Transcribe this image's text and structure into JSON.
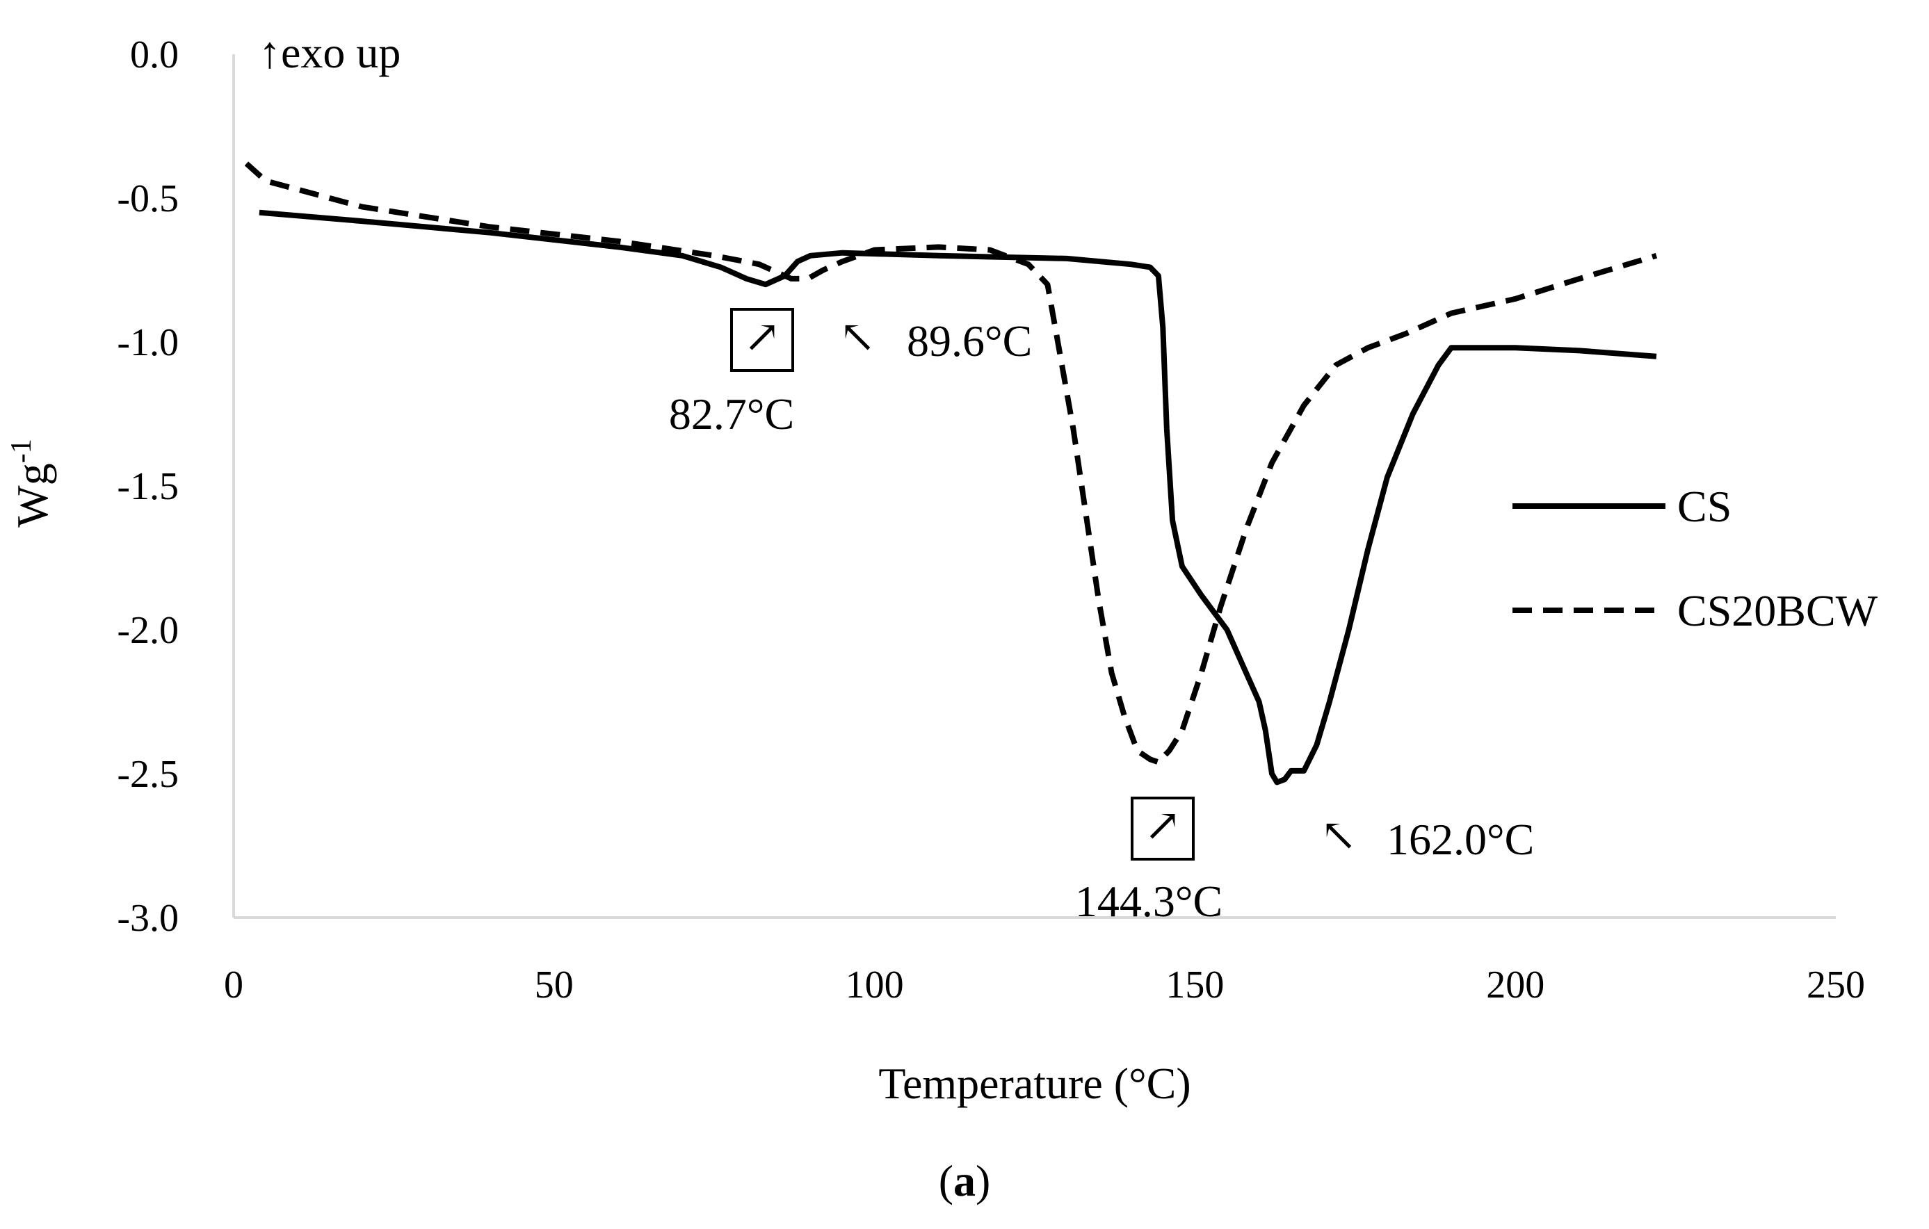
{
  "chart_data": {
    "type": "line",
    "title": "",
    "xlabel": "Temperature (°C)",
    "ylabel": "Wg-1",
    "ylabel_base": "Wg",
    "ylabel_sup": "-1",
    "xlim": [
      0,
      250
    ],
    "ylim": [
      -3.0,
      0.0
    ],
    "xticks": [
      0,
      50,
      100,
      150,
      200,
      250
    ],
    "yticks": [
      0.0,
      -0.5,
      -1.0,
      -1.5,
      -2.0,
      -2.5,
      -3.0
    ],
    "ytick_labels": [
      "0.0",
      "-0.5",
      "-1.0",
      "-1.5",
      "-2.0",
      "-2.5",
      "-3.0"
    ],
    "grid": false,
    "legend_position": "right",
    "exo_label": "exo up",
    "exo_arrow": "↑",
    "caption": {
      "open": "(",
      "letter": "a",
      "close": ")"
    },
    "series": [
      {
        "name": "CS",
        "style": "solid",
        "color": "#000000",
        "points": [
          [
            4,
            -0.55
          ],
          [
            20,
            -0.58
          ],
          [
            40,
            -0.62
          ],
          [
            60,
            -0.67
          ],
          [
            70,
            -0.7
          ],
          [
            76,
            -0.74
          ],
          [
            80,
            -0.78
          ],
          [
            83,
            -0.8
          ],
          [
            86,
            -0.77
          ],
          [
            88,
            -0.72
          ],
          [
            90,
            -0.7
          ],
          [
            95,
            -0.69
          ],
          [
            110,
            -0.7
          ],
          [
            130,
            -0.71
          ],
          [
            140,
            -0.73
          ],
          [
            143,
            -0.74
          ],
          [
            144.3,
            -0.77
          ],
          [
            145,
            -0.95
          ],
          [
            145.6,
            -1.3
          ],
          [
            146.5,
            -1.62
          ],
          [
            148,
            -1.78
          ],
          [
            151,
            -1.88
          ],
          [
            155,
            -2.0
          ],
          [
            158,
            -2.15
          ],
          [
            160,
            -2.25
          ],
          [
            161,
            -2.35
          ],
          [
            162,
            -2.5
          ],
          [
            162.8,
            -2.53
          ],
          [
            164,
            -2.52
          ],
          [
            165,
            -2.49
          ],
          [
            167,
            -2.49
          ],
          [
            169,
            -2.4
          ],
          [
            171,
            -2.25
          ],
          [
            174,
            -2.0
          ],
          [
            177,
            -1.72
          ],
          [
            180,
            -1.47
          ],
          [
            184,
            -1.25
          ],
          [
            188,
            -1.08
          ],
          [
            190,
            -1.02
          ],
          [
            200,
            -1.02
          ],
          [
            210,
            -1.03
          ],
          [
            222,
            -1.05
          ]
        ]
      },
      {
        "name": "CS20BCW",
        "style": "dashed",
        "color": "#000000",
        "points": [
          [
            2,
            -0.38
          ],
          [
            5,
            -0.44
          ],
          [
            20,
            -0.53
          ],
          [
            40,
            -0.6
          ],
          [
            60,
            -0.65
          ],
          [
            75,
            -0.7
          ],
          [
            82,
            -0.73
          ],
          [
            87,
            -0.78
          ],
          [
            89.6,
            -0.78
          ],
          [
            92,
            -0.75
          ],
          [
            95,
            -0.72
          ],
          [
            100,
            -0.68
          ],
          [
            110,
            -0.67
          ],
          [
            118,
            -0.68
          ],
          [
            124,
            -0.73
          ],
          [
            127,
            -0.8
          ],
          [
            129,
            -1.05
          ],
          [
            131,
            -1.3
          ],
          [
            133,
            -1.6
          ],
          [
            135,
            -1.9
          ],
          [
            137,
            -2.15
          ],
          [
            139,
            -2.3
          ],
          [
            141,
            -2.42
          ],
          [
            143,
            -2.45
          ],
          [
            144.3,
            -2.46
          ],
          [
            146,
            -2.42
          ],
          [
            148,
            -2.35
          ],
          [
            151,
            -2.15
          ],
          [
            154,
            -1.92
          ],
          [
            158,
            -1.65
          ],
          [
            162,
            -1.42
          ],
          [
            167,
            -1.22
          ],
          [
            172,
            -1.08
          ],
          [
            177,
            -1.02
          ],
          [
            183,
            -0.97
          ],
          [
            190,
            -0.9
          ],
          [
            200,
            -0.85
          ],
          [
            210,
            -0.78
          ],
          [
            222,
            -0.7
          ]
        ]
      }
    ],
    "annotations": [
      {
        "name": "annotation-82-7",
        "arrow": "↗",
        "boxed": true,
        "label": "82.7°C",
        "x": 82.7,
        "y": -0.8
      },
      {
        "name": "annotation-89-6",
        "arrow": "↖",
        "boxed": false,
        "label": "89.6°C",
        "x": 89.6,
        "y": -0.78
      },
      {
        "name": "annotation-144-3",
        "arrow": "↗",
        "boxed": true,
        "label": "144.3°C",
        "x": 144.3,
        "y": -2.46
      },
      {
        "name": "annotation-162-0",
        "arrow": "↖",
        "boxed": false,
        "label": "162.0°C",
        "x": 162.0,
        "y": -2.53
      }
    ]
  }
}
